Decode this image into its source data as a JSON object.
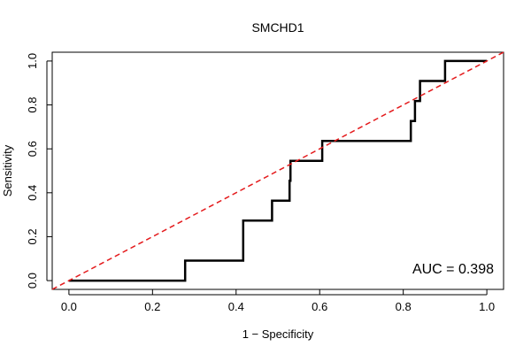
{
  "chart_data": {
    "type": "line",
    "title": "SMCHD1",
    "xlabel": "1 − Specificity",
    "ylabel": "Sensitivity",
    "xlim": [
      -0.04,
      1.04
    ],
    "ylim": [
      -0.04,
      1.04
    ],
    "xticks": [
      0.0,
      0.2,
      0.4,
      0.6,
      0.8,
      1.0
    ],
    "xtick_labels": [
      "0.0",
      "0.2",
      "0.4",
      "0.6",
      "0.8",
      "1.0"
    ],
    "yticks": [
      0.0,
      0.2,
      0.4,
      0.6,
      0.8,
      1.0
    ],
    "ytick_labels": [
      "0.0",
      "0.2",
      "0.4",
      "0.6",
      "0.8",
      "1.0"
    ],
    "grid": false,
    "series": [
      {
        "name": "ROC",
        "color": "#000000",
        "style": "solid",
        "x": [
          0.0,
          0.278,
          0.278,
          0.417,
          0.417,
          0.486,
          0.486,
          0.5,
          0.5,
          0.528,
          0.528,
          0.53,
          0.53,
          0.606,
          0.606,
          0.818,
          0.818,
          0.828,
          0.828,
          0.84,
          0.84,
          0.9,
          0.9,
          1.0
        ],
        "y": [
          0.0,
          0.0,
          0.091,
          0.091,
          0.273,
          0.273,
          0.364,
          0.364,
          0.364,
          0.364,
          0.455,
          0.455,
          0.545,
          0.545,
          0.636,
          0.636,
          0.727,
          0.727,
          0.818,
          0.818,
          0.909,
          0.909,
          1.0,
          1.0
        ]
      },
      {
        "name": "reference",
        "color": "#e41a1c",
        "style": "dashed",
        "x": [
          -0.04,
          1.04
        ],
        "y": [
          -0.04,
          1.04
        ]
      }
    ],
    "annotation": "AUC = 0.398"
  }
}
